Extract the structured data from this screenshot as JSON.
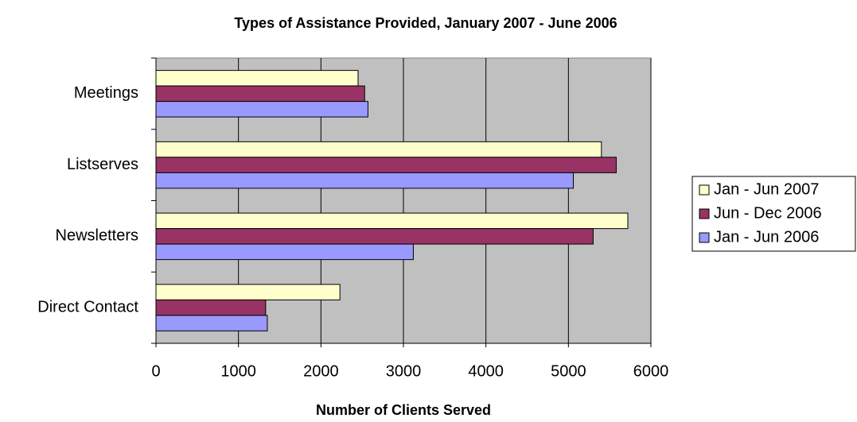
{
  "chart_data": {
    "type": "hbar",
    "title": "Types of Assistance Provided, January 2007 - June 2006",
    "x_label": "Number of Clients Served",
    "categories": [
      "Meetings",
      "Listserves",
      "Newsletters",
      "Direct Contact"
    ],
    "series": [
      {
        "name": "Jan - Jun 2007",
        "color": "#ffffcc",
        "values": [
          2450,
          5400,
          5720,
          2230
        ]
      },
      {
        "name": "Jun - Dec 2006",
        "color": "#993366",
        "values": [
          2530,
          5580,
          5300,
          1330
        ]
      },
      {
        "name": "Jan - Jun 2006",
        "color": "#9999ff",
        "values": [
          2570,
          5060,
          3120,
          1350
        ]
      }
    ],
    "xlim": [
      0,
      6000
    ],
    "xticks": [
      0,
      1000,
      2000,
      3000,
      4000,
      5000,
      6000
    ],
    "grid": true,
    "legend": "right"
  }
}
